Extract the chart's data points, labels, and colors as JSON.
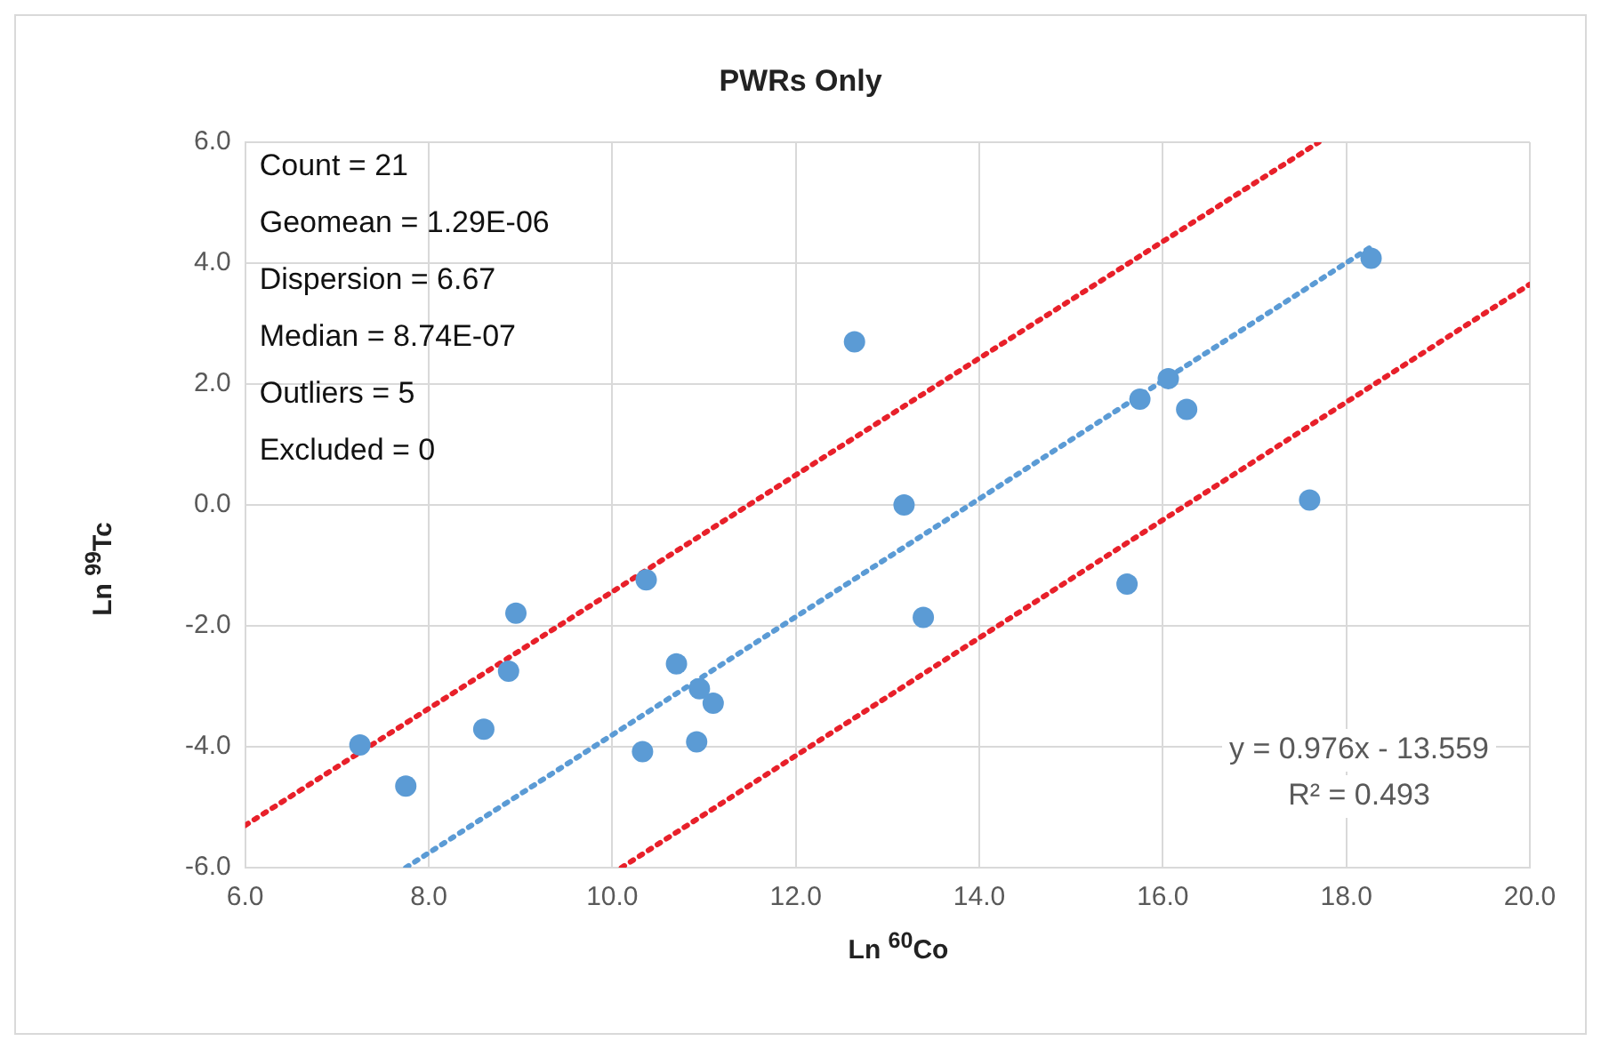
{
  "chart_data": {
    "type": "scatter",
    "title": "PWRs Only",
    "xlabel": "Ln $^{60}$Co",
    "ylabel": "Ln $^{99}$Tc",
    "xlim": [
      6,
      20
    ],
    "ylim": [
      -6,
      6
    ],
    "xticks": [
      {
        "value": 6,
        "label": "6.0"
      },
      {
        "value": 8,
        "label": "8.0"
      },
      {
        "value": 10,
        "label": "10.0"
      },
      {
        "value": 12,
        "label": "12.0"
      },
      {
        "value": 14,
        "label": "14.0"
      },
      {
        "value": 16,
        "label": "16.0"
      },
      {
        "value": 18,
        "label": "18.0"
      },
      {
        "value": 20,
        "label": "20.0"
      }
    ],
    "yticks": [
      {
        "value": -6,
        "label": "-6.0"
      },
      {
        "value": -4,
        "label": "-4.0"
      },
      {
        "value": -2,
        "label": "-2.0"
      },
      {
        "value": 0,
        "label": "0.0"
      },
      {
        "value": 2,
        "label": "2.0"
      },
      {
        "value": 4,
        "label": "4.0"
      },
      {
        "value": 6,
        "label": "6.0"
      }
    ],
    "grid": true,
    "legend": false,
    "marker": "circle",
    "series": [
      {
        "color": "#5b9bd5",
        "x": [
          7.25,
          7.75,
          8.6,
          8.87,
          8.95,
          10.37,
          10.33,
          10.7,
          10.95,
          11.1,
          10.92,
          12.64,
          13.18,
          13.39,
          15.61,
          15.71,
          16.06,
          16.26,
          17.6,
          18.27,
          15.75
        ],
        "values": [
          -3.97,
          -4.65,
          -3.71,
          -2.75,
          -1.79,
          -1.24,
          -4.08,
          -2.63,
          -3.04,
          -3.28,
          -3.92,
          2.7,
          0.0,
          -1.86,
          -1.31,
          null,
          2.09,
          1.58,
          0.08,
          4.08,
          1.75
        ]
      },
      {
        "type": "line",
        "color": "#5b9bd5",
        "line_style": "dotted",
        "marker": "none",
        "x": [
          7.75,
          18.25
        ],
        "values": [
          -6.0,
          4.25
        ]
      },
      {
        "type": "line",
        "color": "#e8202a",
        "line_style": "dotted",
        "marker": "none",
        "x": [
          6,
          17.7
        ],
        "values": [
          -5.3,
          6.0
        ]
      },
      {
        "type": "line",
        "color": "#e8202a",
        "line_style": "dotted",
        "marker": "none",
        "x": [
          10.1,
          20
        ],
        "values": [
          -6.0,
          3.65
        ]
      }
    ],
    "annotations": [
      "Count = 21",
      "Geomean = 1.29E-06",
      "Dispersion = 6.67",
      "Median = 8.74E-07",
      "Outliers = 5",
      "Excluded = 0",
      "y = 0.976x - 13.559",
      "R² = 0.493"
    ]
  }
}
